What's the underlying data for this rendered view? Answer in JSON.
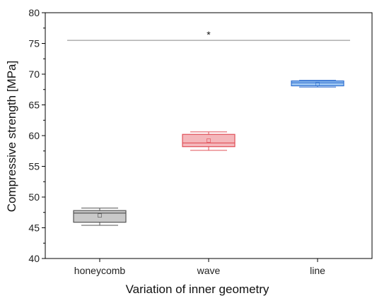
{
  "chart_data": {
    "type": "box",
    "xlabel": "Variation of inner geometry",
    "ylabel": "Compressive strength [MPa]",
    "ylim": [
      40,
      80
    ],
    "yticks": [
      "40",
      "45",
      "50",
      "55",
      "60",
      "65",
      "70",
      "75",
      "80"
    ],
    "categories": [
      "honeycomb",
      "wave",
      "line"
    ],
    "boxes": [
      {
        "category": "honeycomb",
        "whisker_low": 45.4,
        "q1": 45.9,
        "median": 47.4,
        "mean": 47.0,
        "q3": 47.8,
        "whisker_high": 48.2,
        "fill": "#c9c9c9",
        "stroke": "#555555"
      },
      {
        "category": "wave",
        "whisker_low": 57.6,
        "q1": 58.2,
        "median": 58.8,
        "mean": 59.2,
        "q3": 60.2,
        "whisker_high": 60.6,
        "fill": "#f4b7bb",
        "stroke": "#e05058"
      },
      {
        "category": "line",
        "whisker_low": 67.9,
        "q1": 68.1,
        "median": 68.6,
        "mean": 68.4,
        "q3": 68.9,
        "whisker_high": 69.0,
        "fill": "#9cc5f2",
        "stroke": "#2e6fd0"
      }
    ],
    "significance": {
      "y": 75.5,
      "label": "*",
      "from": "honeycomb",
      "to": "line"
    },
    "grid": false,
    "legend": "none"
  }
}
